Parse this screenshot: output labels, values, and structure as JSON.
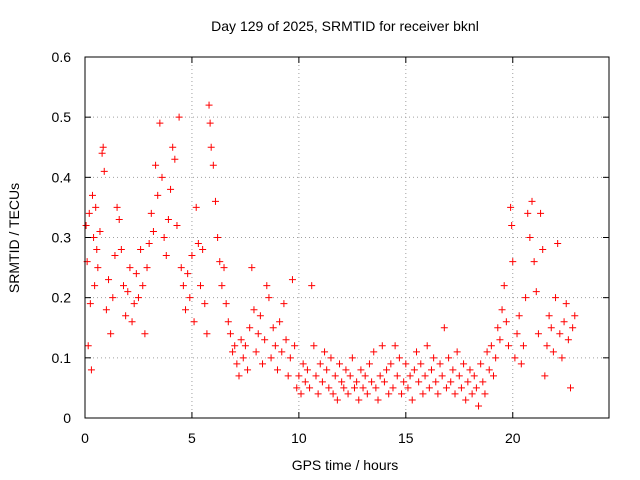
{
  "chart_data": {
    "type": "scatter",
    "title": "Day 129 of 2025, SRMTID for receiver bknl",
    "xlabel": "GPS time / hours",
    "ylabel": "SRMTID / TECUs",
    "xlim": [
      0,
      24.5
    ],
    "ylim": [
      0,
      0.6
    ],
    "x_ticks": [
      0,
      5,
      10,
      15,
      20
    ],
    "x_tick_labels": [
      "0",
      "5",
      "10",
      "15",
      "20"
    ],
    "y_ticks": [
      0,
      0.1,
      0.2,
      0.3,
      0.4,
      0.5,
      0.6
    ],
    "y_tick_labels": [
      "0",
      "0.1",
      "0.2",
      "0.3",
      "0.4",
      "0.5",
      "0.6"
    ],
    "grid": true,
    "marker": "+",
    "marker_color": "#ff0000",
    "series": [
      {
        "name": "SRMTID",
        "points": [
          [
            0.05,
            0.32
          ],
          [
            0.1,
            0.26
          ],
          [
            0.15,
            0.12
          ],
          [
            0.2,
            0.34
          ],
          [
            0.25,
            0.19
          ],
          [
            0.3,
            0.08
          ],
          [
            0.35,
            0.37
          ],
          [
            0.4,
            0.3
          ],
          [
            0.45,
            0.22
          ],
          [
            0.5,
            0.35
          ],
          [
            0.55,
            0.28
          ],
          [
            0.6,
            0.25
          ],
          [
            0.7,
            0.31
          ],
          [
            0.8,
            0.44
          ],
          [
            0.85,
            0.45
          ],
          [
            0.9,
            0.41
          ],
          [
            1.0,
            0.18
          ],
          [
            1.1,
            0.23
          ],
          [
            1.2,
            0.14
          ],
          [
            1.3,
            0.2
          ],
          [
            1.4,
            0.27
          ],
          [
            1.5,
            0.35
          ],
          [
            1.6,
            0.33
          ],
          [
            1.7,
            0.28
          ],
          [
            1.8,
            0.22
          ],
          [
            1.9,
            0.17
          ],
          [
            2.0,
            0.21
          ],
          [
            2.1,
            0.25
          ],
          [
            2.2,
            0.16
          ],
          [
            2.3,
            0.19
          ],
          [
            2.4,
            0.24
          ],
          [
            2.5,
            0.2
          ],
          [
            2.6,
            0.28
          ],
          [
            2.7,
            0.22
          ],
          [
            2.8,
            0.14
          ],
          [
            2.9,
            0.25
          ],
          [
            3.0,
            0.29
          ],
          [
            3.1,
            0.34
          ],
          [
            3.2,
            0.31
          ],
          [
            3.3,
            0.42
          ],
          [
            3.4,
            0.37
          ],
          [
            3.5,
            0.49
          ],
          [
            3.6,
            0.4
          ],
          [
            3.7,
            0.3
          ],
          [
            3.8,
            0.27
          ],
          [
            3.9,
            0.33
          ],
          [
            4.0,
            0.38
          ],
          [
            4.1,
            0.45
          ],
          [
            4.2,
            0.43
          ],
          [
            4.3,
            0.32
          ],
          [
            4.4,
            0.5
          ],
          [
            4.5,
            0.25
          ],
          [
            4.6,
            0.22
          ],
          [
            4.7,
            0.18
          ],
          [
            4.8,
            0.24
          ],
          [
            4.9,
            0.2
          ],
          [
            5.0,
            0.27
          ],
          [
            5.1,
            0.16
          ],
          [
            5.2,
            0.35
          ],
          [
            5.3,
            0.29
          ],
          [
            5.4,
            0.22
          ],
          [
            5.5,
            0.28
          ],
          [
            5.6,
            0.19
          ],
          [
            5.7,
            0.14
          ],
          [
            5.8,
            0.52
          ],
          [
            5.85,
            0.49
          ],
          [
            5.9,
            0.45
          ],
          [
            6.0,
            0.42
          ],
          [
            6.1,
            0.36
          ],
          [
            6.2,
            0.3
          ],
          [
            6.3,
            0.26
          ],
          [
            6.4,
            0.22
          ],
          [
            6.5,
            0.25
          ],
          [
            6.6,
            0.19
          ],
          [
            6.7,
            0.16
          ],
          [
            6.8,
            0.14
          ],
          [
            6.9,
            0.11
          ],
          [
            7.0,
            0.12
          ],
          [
            7.1,
            0.09
          ],
          [
            7.2,
            0.07
          ],
          [
            7.3,
            0.13
          ],
          [
            7.4,
            0.1
          ],
          [
            7.5,
            0.12
          ],
          [
            7.6,
            0.08
          ],
          [
            7.7,
            0.15
          ],
          [
            7.8,
            0.25
          ],
          [
            7.9,
            0.18
          ],
          [
            8.0,
            0.11
          ],
          [
            8.1,
            0.14
          ],
          [
            8.2,
            0.17
          ],
          [
            8.3,
            0.09
          ],
          [
            8.4,
            0.13
          ],
          [
            8.5,
            0.22
          ],
          [
            8.6,
            0.2
          ],
          [
            8.7,
            0.1
          ],
          [
            8.8,
            0.15
          ],
          [
            8.9,
            0.12
          ],
          [
            9.0,
            0.08
          ],
          [
            9.1,
            0.16
          ],
          [
            9.2,
            0.11
          ],
          [
            9.3,
            0.19
          ],
          [
            9.4,
            0.13
          ],
          [
            9.5,
            0.07
          ],
          [
            9.6,
            0.1
          ],
          [
            9.7,
            0.23
          ],
          [
            9.8,
            0.12
          ],
          [
            9.9,
            0.05
          ],
          [
            10.0,
            0.07
          ],
          [
            10.1,
            0.04
          ],
          [
            10.2,
            0.09
          ],
          [
            10.3,
            0.06
          ],
          [
            10.4,
            0.08
          ],
          [
            10.5,
            0.05
          ],
          [
            10.6,
            0.22
          ],
          [
            10.7,
            0.12
          ],
          [
            10.8,
            0.07
          ],
          [
            10.9,
            0.04
          ],
          [
            11.0,
            0.09
          ],
          [
            11.1,
            0.06
          ],
          [
            11.2,
            0.11
          ],
          [
            11.3,
            0.08
          ],
          [
            11.4,
            0.05
          ],
          [
            11.5,
            0.1
          ],
          [
            11.6,
            0.04
          ],
          [
            11.7,
            0.07
          ],
          [
            11.8,
            0.03
          ],
          [
            11.9,
            0.09
          ],
          [
            12.0,
            0.06
          ],
          [
            12.1,
            0.05
          ],
          [
            12.2,
            0.08
          ],
          [
            12.3,
            0.04
          ],
          [
            12.4,
            0.07
          ],
          [
            12.5,
            0.1
          ],
          [
            12.6,
            0.05
          ],
          [
            12.7,
            0.06
          ],
          [
            12.8,
            0.03
          ],
          [
            12.9,
            0.08
          ],
          [
            13.0,
            0.05
          ],
          [
            13.1,
            0.07
          ],
          [
            13.2,
            0.04
          ],
          [
            13.3,
            0.09
          ],
          [
            13.4,
            0.06
          ],
          [
            13.5,
            0.11
          ],
          [
            13.6,
            0.05
          ],
          [
            13.7,
            0.03
          ],
          [
            13.8,
            0.07
          ],
          [
            13.9,
            0.12
          ],
          [
            14.0,
            0.06
          ],
          [
            14.1,
            0.08
          ],
          [
            14.2,
            0.04
          ],
          [
            14.3,
            0.09
          ],
          [
            14.4,
            0.05
          ],
          [
            14.5,
            0.12
          ],
          [
            14.6,
            0.07
          ],
          [
            14.7,
            0.1
          ],
          [
            14.8,
            0.04
          ],
          [
            14.9,
            0.06
          ],
          [
            15.0,
            0.09
          ],
          [
            15.1,
            0.05
          ],
          [
            15.2,
            0.07
          ],
          [
            15.3,
            0.03
          ],
          [
            15.4,
            0.08
          ],
          [
            15.5,
            0.11
          ],
          [
            15.6,
            0.06
          ],
          [
            15.7,
            0.09
          ],
          [
            15.8,
            0.04
          ],
          [
            15.9,
            0.07
          ],
          [
            16.0,
            0.12
          ],
          [
            16.1,
            0.05
          ],
          [
            16.2,
            0.08
          ],
          [
            16.3,
            0.1
          ],
          [
            16.4,
            0.06
          ],
          [
            16.5,
            0.04
          ],
          [
            16.6,
            0.09
          ],
          [
            16.7,
            0.07
          ],
          [
            16.8,
            0.15
          ],
          [
            16.9,
            0.05
          ],
          [
            17.0,
            0.1
          ],
          [
            17.1,
            0.06
          ],
          [
            17.2,
            0.08
          ],
          [
            17.3,
            0.04
          ],
          [
            17.4,
            0.11
          ],
          [
            17.5,
            0.07
          ],
          [
            17.6,
            0.05
          ],
          [
            17.7,
            0.09
          ],
          [
            17.8,
            0.03
          ],
          [
            17.9,
            0.06
          ],
          [
            18.0,
            0.08
          ],
          [
            18.1,
            0.04
          ],
          [
            18.2,
            0.07
          ],
          [
            18.3,
            0.05
          ],
          [
            18.4,
            0.02
          ],
          [
            18.5,
            0.09
          ],
          [
            18.6,
            0.06
          ],
          [
            18.7,
            0.04
          ],
          [
            18.8,
            0.11
          ],
          [
            18.9,
            0.08
          ],
          [
            19.0,
            0.12
          ],
          [
            19.1,
            0.07
          ],
          [
            19.2,
            0.1
          ],
          [
            19.3,
            0.15
          ],
          [
            19.4,
            0.13
          ],
          [
            19.5,
            0.18
          ],
          [
            19.6,
            0.22
          ],
          [
            19.7,
            0.16
          ],
          [
            19.8,
            0.12
          ],
          [
            19.9,
            0.35
          ],
          [
            19.95,
            0.32
          ],
          [
            20.0,
            0.26
          ],
          [
            20.1,
            0.1
          ],
          [
            20.2,
            0.14
          ],
          [
            20.3,
            0.17
          ],
          [
            20.4,
            0.09
          ],
          [
            20.5,
            0.12
          ],
          [
            20.6,
            0.2
          ],
          [
            20.7,
            0.34
          ],
          [
            20.8,
            0.3
          ],
          [
            20.9,
            0.36
          ],
          [
            21.0,
            0.26
          ],
          [
            21.1,
            0.21
          ],
          [
            21.2,
            0.14
          ],
          [
            21.3,
            0.34
          ],
          [
            21.4,
            0.28
          ],
          [
            21.5,
            0.07
          ],
          [
            21.6,
            0.12
          ],
          [
            21.7,
            0.17
          ],
          [
            21.8,
            0.15
          ],
          [
            21.9,
            0.11
          ],
          [
            22.0,
            0.2
          ],
          [
            22.1,
            0.29
          ],
          [
            22.2,
            0.14
          ],
          [
            22.3,
            0.1
          ],
          [
            22.4,
            0.16
          ],
          [
            22.5,
            0.19
          ],
          [
            22.6,
            0.13
          ],
          [
            22.7,
            0.05
          ],
          [
            22.8,
            0.15
          ],
          [
            22.9,
            0.17
          ]
        ]
      }
    ]
  }
}
